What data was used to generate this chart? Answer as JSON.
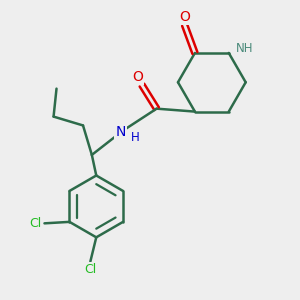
{
  "bg_color": "#eeeeee",
  "bond_color": "#2d6b4a",
  "bond_width": 1.8,
  "O_color": "#dd0000",
  "N_color": "#0000cc",
  "Cl_color": "#22bb22",
  "NH_color": "#4a8a7a",
  "figsize": [
    3.0,
    3.0
  ],
  "dpi": 100,
  "xlim": [
    0,
    10
  ],
  "ylim": [
    0,
    10
  ]
}
